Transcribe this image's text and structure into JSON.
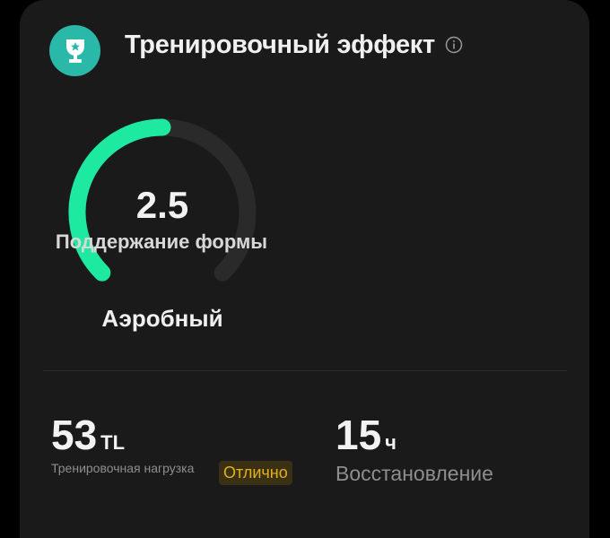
{
  "header": {
    "title": "Тренировочный эффект",
    "icon": "trophy-icon",
    "info_icon": "info-icon"
  },
  "gauge": {
    "value": 2.5,
    "value_text": "2.5",
    "max": 5,
    "label": "Поддержание формы",
    "type": "Аэробный",
    "fill_color": "#1de9a0",
    "track_color": "#2a2a2a"
  },
  "stats": {
    "training_load": {
      "value": "53",
      "unit": "TL",
      "label": "Тренировочная нагрузка",
      "badge": "Отлично"
    },
    "recovery": {
      "value": "15",
      "unit": "ч",
      "label": "Восстановление"
    }
  }
}
